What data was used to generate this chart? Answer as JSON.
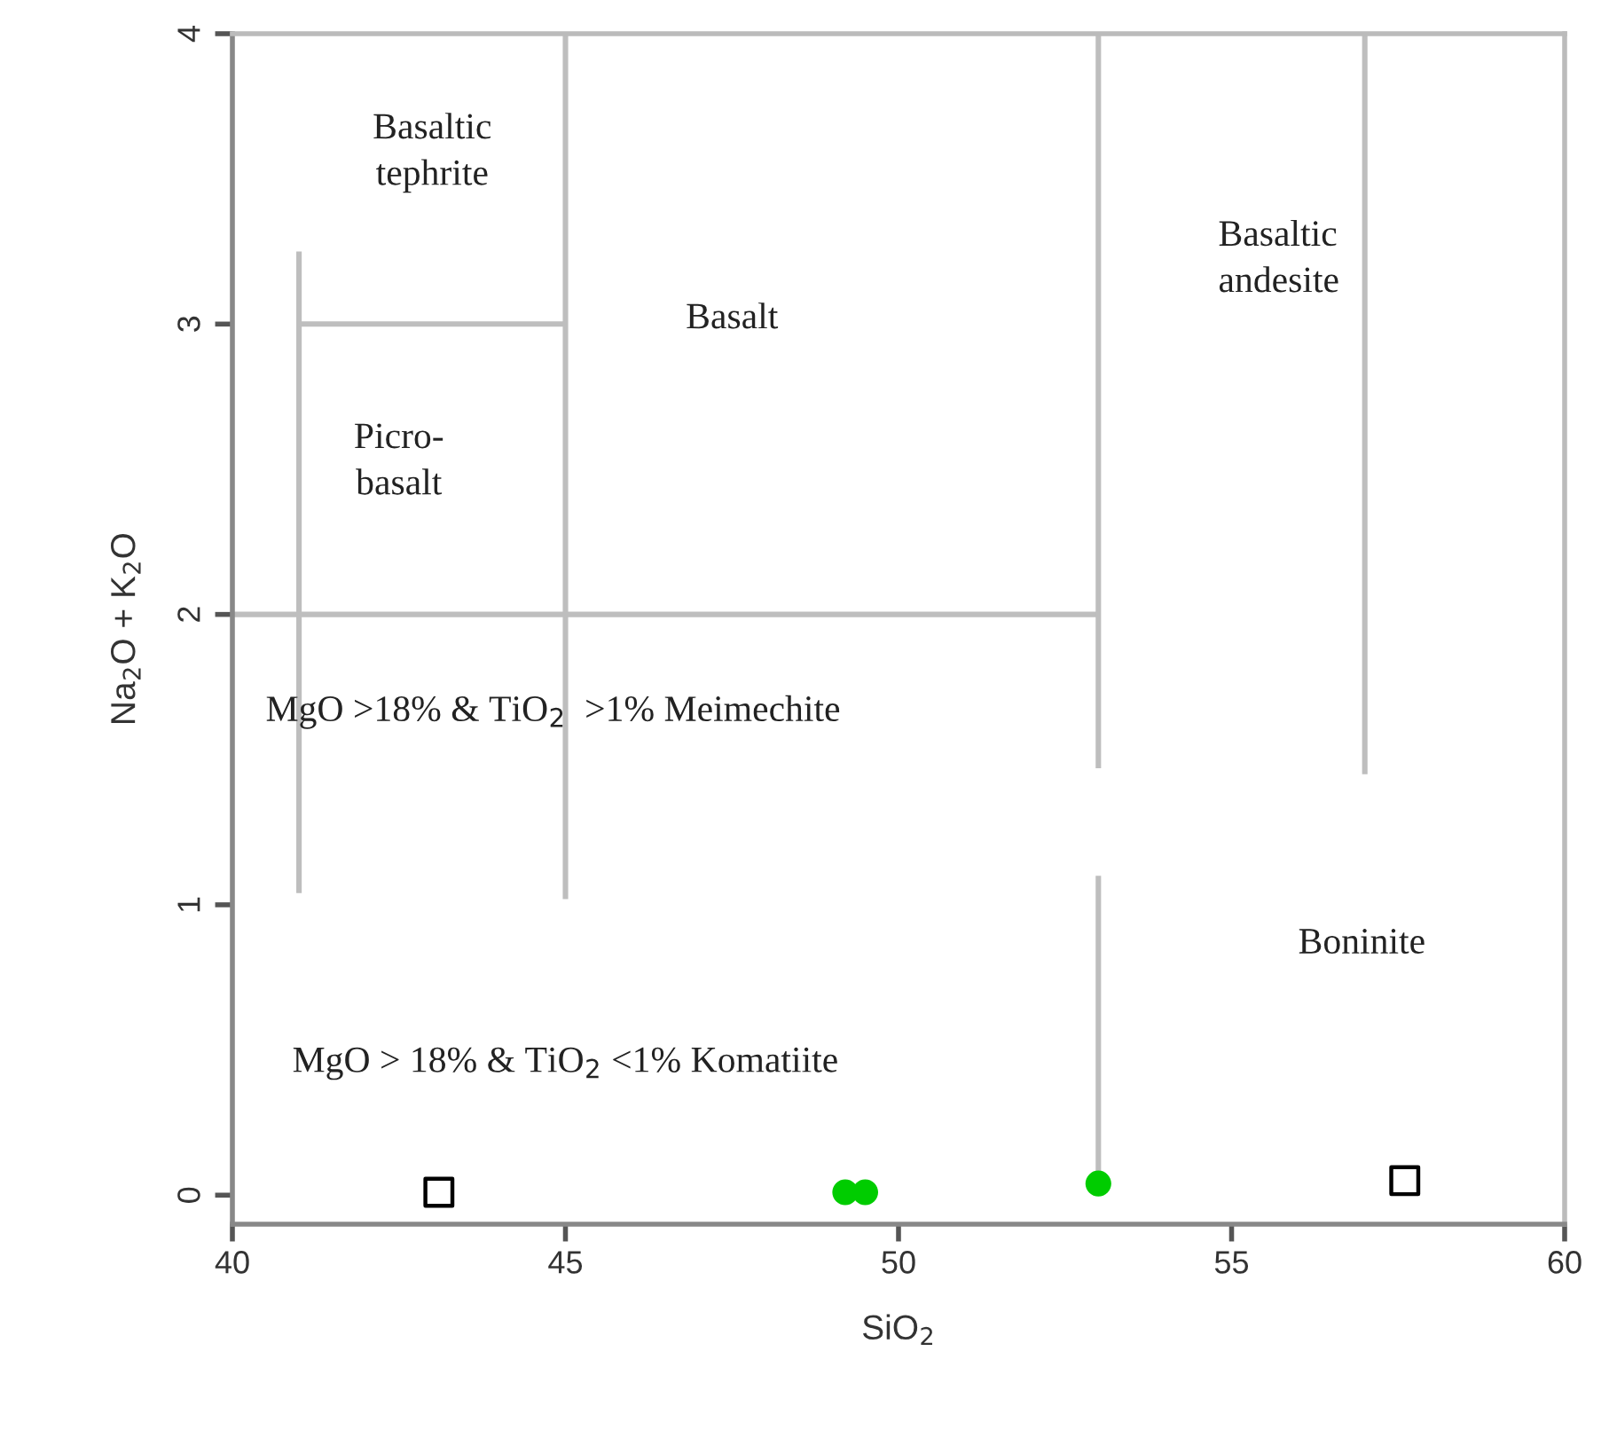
{
  "chart_data": {
    "type": "scatter",
    "xlabel": "SiO$_{2}$",
    "ylabel": "Na$_{2}$O + K$_{2}$O",
    "xlim": [
      40,
      60
    ],
    "ylim": [
      -0.1,
      4
    ],
    "xticks": [
      40,
      45,
      50,
      55,
      60
    ],
    "yticks": [
      0,
      1,
      2,
      3,
      4
    ],
    "grid": false,
    "legend": false,
    "series": [
      {
        "type": "line",
        "color": "#bebebe",
        "x": [
          41,
          41
        ],
        "values": [
          1.04,
          3.25
        ]
      },
      {
        "type": "line",
        "color": "#bebebe",
        "x": [
          41,
          45
        ],
        "values": [
          3,
          3
        ]
      },
      {
        "type": "line",
        "color": "#bebebe",
        "x": [
          45,
          45
        ],
        "values": [
          1.02,
          4
        ]
      },
      {
        "type": "line",
        "color": "#bebebe",
        "x": [
          40,
          53
        ],
        "values": [
          2,
          2
        ]
      },
      {
        "type": "line",
        "color": "#bebebe",
        "x": [
          53,
          53
        ],
        "values": [
          4,
          1.47
        ]
      },
      {
        "type": "line",
        "color": "#bebebe",
        "x": [
          53,
          53
        ],
        "values": [
          1.1,
          0
        ]
      },
      {
        "type": "line",
        "color": "#bebebe",
        "x": [
          57,
          57
        ],
        "values": [
          4,
          1.45
        ]
      },
      {
        "marker": "circle",
        "color": "#00cc00",
        "x": [
          49.2,
          49.5,
          53.0
        ],
        "values": [
          0.01,
          0.01,
          0.04
        ]
      },
      {
        "marker": "square",
        "color": "#000000",
        "x": [
          43.1,
          57.6
        ],
        "values": [
          0.01,
          0.05
        ]
      }
    ],
    "annotations": [
      "Basaltic\ntephrite",
      "Picro-\nbasalt",
      "Basalt",
      "Basaltic\nandesite",
      "MgO >18% & TiO$_{2}$  >1% Meimechite",
      "Boninite",
      "MgO > 18% & TiO$_{2}$ <1% Komatiite"
    ]
  }
}
